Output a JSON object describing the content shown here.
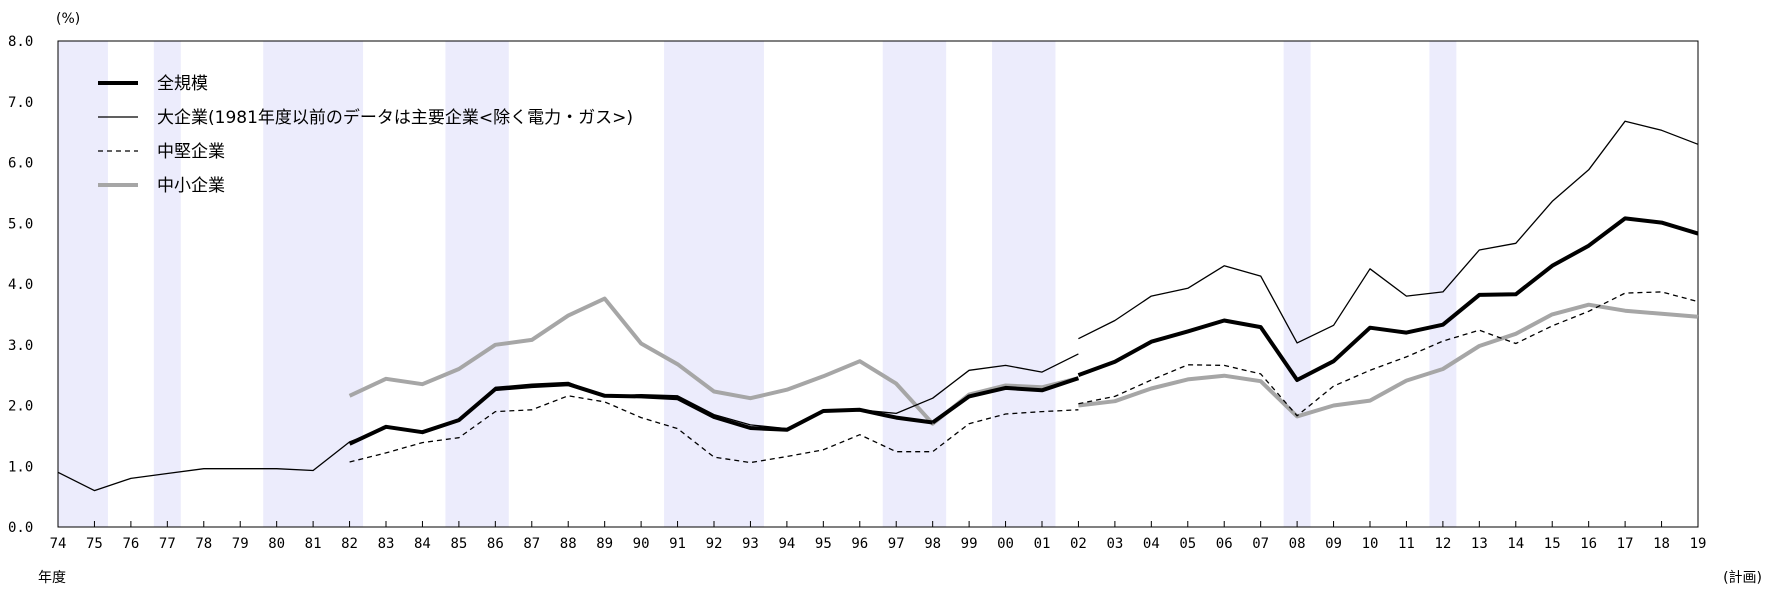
{
  "chart_data": {
    "type": "line",
    "title": "",
    "ylabel": "(%)",
    "xlabel": "年度",
    "x_note": "(計画)",
    "ylim": [
      0,
      8
    ],
    "y_ticks": [
      "0.0",
      "1.0",
      "2.0",
      "3.0",
      "4.0",
      "5.0",
      "6.0",
      "7.0",
      "8.0"
    ],
    "grid": false,
    "legend_position": "top-left",
    "categories": [
      "74",
      "75",
      "76",
      "77",
      "78",
      "79",
      "80",
      "81",
      "82",
      "83",
      "84",
      "85",
      "86",
      "87",
      "88",
      "89",
      "90",
      "91",
      "92",
      "93",
      "94",
      "95",
      "96",
      "97",
      "98",
      "99",
      "00",
      "01",
      "02",
      "03",
      "04",
      "05",
      "06",
      "07",
      "08",
      "09",
      "10",
      "11",
      "12",
      "13",
      "14",
      "15",
      "16",
      "17",
      "18",
      "19"
    ],
    "shaded_periods": [
      {
        "from": "74",
        "to": "75"
      },
      {
        "from": "77",
        "to": "77"
      },
      {
        "from": "80",
        "to": "82"
      },
      {
        "from": "85",
        "to": "86"
      },
      {
        "from": "91",
        "to": "93"
      },
      {
        "from": "97",
        "to": "98"
      },
      {
        "from": "00",
        "to": "01"
      },
      {
        "from": "08",
        "to": "08"
      },
      {
        "from": "12",
        "to": "12"
      }
    ],
    "shade_color": "#ececfc",
    "series": [
      {
        "name": "大企業(1981年度以前のデータは主要企業<除く電力・ガス>)",
        "style": "thin",
        "color": "#000000",
        "segments": [
          {
            "start": "74",
            "values": [
              0.9,
              0.6,
              0.8,
              0.88,
              0.96,
              0.96,
              0.96,
              0.93,
              1.4,
              1.63,
              1.56,
              1.75,
              2.3,
              2.35,
              2.38,
              2.15,
              2.18,
              2.16,
              1.85,
              1.68,
              1.62,
              1.9,
              1.93,
              1.87,
              2.12,
              2.58,
              2.66,
              2.55,
              2.85
            ]
          },
          {
            "start": "02",
            "values": [
              3.1,
              3.4,
              3.8,
              3.93,
              4.3,
              4.13,
              3.03,
              3.32,
              4.25,
              3.8,
              3.87,
              4.56,
              4.67,
              5.36,
              5.88,
              6.68,
              6.53,
              6.3
            ]
          }
        ]
      },
      {
        "name": "全規模",
        "style": "bold",
        "color": "#000000",
        "segments": [
          {
            "start": "82",
            "values": [
              1.37,
              1.65,
              1.56,
              1.76,
              2.27,
              2.32,
              2.35,
              2.16,
              2.15,
              2.12,
              1.81,
              1.63,
              1.6,
              1.91,
              1.93,
              1.8,
              1.72
            ]
          },
          {
            "start": "98",
            "values": [
              1.72,
              2.15,
              2.29,
              2.25,
              2.45
            ]
          },
          {
            "start": "02",
            "values": [
              2.5,
              2.72,
              3.05,
              3.22,
              3.4,
              3.29,
              2.42,
              2.73,
              3.28,
              3.2,
              3.33,
              3.82,
              3.83,
              4.3,
              4.63,
              5.08,
              5.01,
              4.83
            ]
          }
        ]
      },
      {
        "name": "中堅企業",
        "style": "dashed",
        "color": "#000000",
        "segments": [
          {
            "start": "82",
            "values": [
              1.07,
              1.22,
              1.39,
              1.47,
              1.9,
              1.93,
              2.16,
              2.06,
              1.8,
              1.62,
              1.15,
              1.06,
              1.16,
              1.27,
              1.52,
              1.24,
              1.24,
              1.7,
              1.86,
              1.9,
              1.93
            ]
          },
          {
            "start": "02",
            "values": [
              2.03,
              2.15,
              2.42,
              2.67,
              2.66,
              2.52,
              1.83,
              2.32,
              2.58,
              2.8,
              3.06,
              3.24,
              3.02,
              3.31,
              3.55,
              3.85,
              3.87,
              3.71
            ]
          }
        ]
      },
      {
        "name": "中小企業",
        "style": "gray",
        "color": "#a6a6a6",
        "segments": [
          {
            "start": "82",
            "values": [
              2.16,
              2.44,
              2.35,
              2.6,
              3.0,
              3.08,
              3.48,
              3.76,
              3.02,
              2.68,
              2.23,
              2.12,
              2.26,
              2.48,
              2.73,
              2.36,
              1.7,
              2.18,
              2.33,
              2.3,
              2.45
            ]
          },
          {
            "start": "02",
            "values": [
              2.0,
              2.07,
              2.28,
              2.43,
              2.49,
              2.4,
              1.82,
              2.0,
              2.08,
              2.41,
              2.6,
              2.98,
              3.18,
              3.5,
              3.66,
              3.56,
              3.51,
              3.46
            ]
          }
        ]
      }
    ],
    "legend": [
      {
        "name": "全規模",
        "style": "bold"
      },
      {
        "name": "大企業(1981年度以前のデータは主要企業<除く電力・ガス>)",
        "style": "thin"
      },
      {
        "name": "中堅企業",
        "style": "dashed"
      },
      {
        "name": "中小企業",
        "style": "gray"
      }
    ]
  }
}
